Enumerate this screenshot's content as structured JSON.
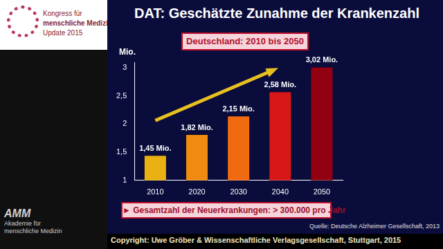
{
  "page": {
    "logo_top": [
      "Kongress für",
      "menschliche Medizin",
      "Update 2015"
    ],
    "logo_bottom": [
      "AMM",
      "Akademie für",
      "menschliche Medizin"
    ]
  },
  "chart_data": {
    "type": "bar",
    "title": "DAT: Geschätzte Zunahme der Krankenzahl",
    "subtitle": "Deutschland: 2010 bis 2050",
    "y_label": "Mio.",
    "categories": [
      "2010",
      "2020",
      "2030",
      "2040",
      "2050"
    ],
    "values": [
      1.45,
      1.82,
      2.15,
      2.58,
      3.02
    ],
    "value_labels": [
      "1,45 Mio.",
      "1,82 Mio.",
      "2,15 Mio.",
      "2,58 Mio.",
      "3,02 Mio."
    ],
    "colors": [
      "#e8b010",
      "#f08a10",
      "#f06a10",
      "#d81818",
      "#900010"
    ],
    "ylim": [
      1,
      3.1
    ],
    "yticks": [
      1,
      {
        "value": 1.5,
        "label": "1,5"
      },
      2,
      {
        "value": 2.5,
        "label": "2,5"
      },
      3
    ],
    "grid": false,
    "data_labels": true,
    "annotations": [
      "► Gesamtzahl der Neuerkrankungen: > 300.000 pro Jahr"
    ],
    "source": "Quelle: Deutsche Alzheimer Gesellschaft, 2013",
    "copyright": "Copyright: Uwe Gröber & Wissenschaftliche Verlagsgesellschaft, Stuttgart, 2015"
  }
}
